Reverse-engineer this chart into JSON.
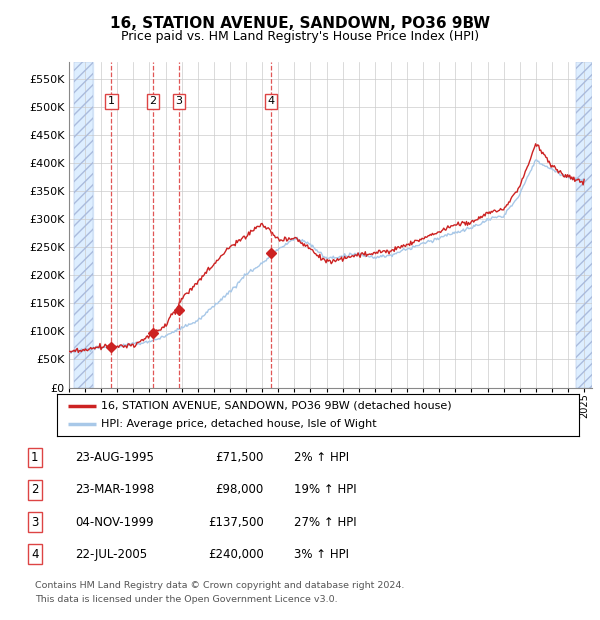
{
  "title": "16, STATION AVENUE, SANDOWN, PO36 9BW",
  "subtitle": "Price paid vs. HM Land Registry's House Price Index (HPI)",
  "ytick_values": [
    0,
    50000,
    100000,
    150000,
    200000,
    250000,
    300000,
    350000,
    400000,
    450000,
    500000,
    550000
  ],
  "ylim": [
    0,
    580000
  ],
  "xlim_start": 1993.3,
  "xlim_end": 2025.5,
  "hatch_left_end": 1994.5,
  "hatch_right_start": 2024.5,
  "purchases": [
    {
      "date": 1995.64,
      "price": 71500,
      "label": "1"
    },
    {
      "date": 1998.22,
      "price": 98000,
      "label": "2"
    },
    {
      "date": 1999.84,
      "price": 137500,
      "label": "3"
    },
    {
      "date": 2005.55,
      "price": 240000,
      "label": "4"
    }
  ],
  "legend_house_label": "16, STATION AVENUE, SANDOWN, PO36 9BW (detached house)",
  "legend_hpi_label": "HPI: Average price, detached house, Isle of Wight",
  "table_entries": [
    {
      "num": "1",
      "date": "23-AUG-1995",
      "price": "£71,500",
      "change": "2% ↑ HPI"
    },
    {
      "num": "2",
      "date": "23-MAR-1998",
      "price": "£98,000",
      "change": "19% ↑ HPI"
    },
    {
      "num": "3",
      "date": "04-NOV-1999",
      "price": "£137,500",
      "change": "27% ↑ HPI"
    },
    {
      "num": "4",
      "date": "22-JUL-2005",
      "price": "£240,000",
      "change": "3% ↑ HPI"
    }
  ],
  "footer_line1": "Contains HM Land Registry data © Crown copyright and database right 2024.",
  "footer_line2": "This data is licensed under the Open Government Licence v3.0.",
  "hpi_color": "#a8c8e8",
  "house_color": "#cc2222",
  "bg_hatch_color": "#ddeeff",
  "grid_color": "#cccccc",
  "dashed_line_color": "#dd4444",
  "label_box_color": "#dd4444",
  "hpi_control_years": [
    1993,
    1994,
    1995,
    1996,
    1997,
    1998,
    1999,
    2000,
    2001,
    2002,
    2003,
    2004,
    2005,
    2006,
    2007,
    2008,
    2009,
    2010,
    2011,
    2012,
    2013,
    2014,
    2015,
    2016,
    2017,
    2018,
    2019,
    2020,
    2021,
    2022,
    2023,
    2024,
    2025
  ],
  "hpi_control_vals": [
    62000,
    65000,
    68000,
    72000,
    76000,
    82000,
    90000,
    105000,
    118000,
    145000,
    170000,
    200000,
    220000,
    245000,
    265000,
    255000,
    230000,
    235000,
    240000,
    235000,
    238000,
    248000,
    258000,
    268000,
    278000,
    285000,
    298000,
    305000,
    345000,
    405000,
    390000,
    375000,
    370000
  ],
  "house_control_years": [
    1993,
    1994,
    1995,
    1996,
    1997,
    1998,
    1999,
    2000,
    2001,
    2002,
    2003,
    2004,
    2005,
    2006,
    2007,
    2008,
    2009,
    2010,
    2011,
    2012,
    2013,
    2014,
    2015,
    2016,
    2017,
    2018,
    2019,
    2020,
    2021,
    2022,
    2023,
    2024,
    2025
  ],
  "house_control_vals": [
    60000,
    63000,
    68000,
    70000,
    74000,
    90000,
    110000,
    155000,
    185000,
    215000,
    250000,
    270000,
    295000,
    265000,
    270000,
    252000,
    228000,
    232000,
    240000,
    238000,
    242000,
    255000,
    265000,
    278000,
    290000,
    295000,
    312000,
    318000,
    358000,
    435000,
    395000,
    375000,
    368000
  ]
}
